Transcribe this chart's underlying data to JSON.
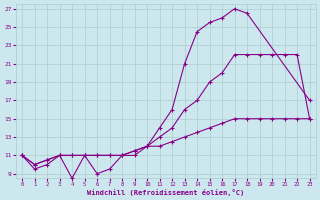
{
  "title": "",
  "xlabel": "Windchill (Refroidissement éolien,°C)",
  "ylabel": "",
  "bg_color": "#cce8ee",
  "line_color": "#880088",
  "grid_color": "#aacccc",
  "xlim": [
    -0.5,
    23.5
  ],
  "ylim": [
    8.5,
    27.5
  ],
  "xticks": [
    0,
    1,
    2,
    3,
    4,
    5,
    6,
    7,
    8,
    9,
    10,
    11,
    12,
    13,
    14,
    15,
    16,
    17,
    18,
    19,
    20,
    21,
    22,
    23
  ],
  "yticks": [
    9,
    11,
    13,
    15,
    17,
    19,
    21,
    23,
    25,
    27
  ],
  "line1_x": [
    0,
    1,
    2,
    3,
    4,
    5,
    6,
    7,
    8,
    9,
    10,
    11,
    12,
    13,
    14,
    15,
    16,
    17,
    18,
    23
  ],
  "line1_y": [
    11,
    9.5,
    10,
    11,
    8.5,
    11,
    9,
    9.5,
    11,
    11,
    12,
    14,
    16,
    21,
    24.5,
    25.5,
    26,
    27,
    26.5,
    17
  ],
  "line2_x": [
    0,
    1,
    2,
    3,
    4,
    5,
    6,
    7,
    8,
    9,
    10,
    11,
    12,
    13,
    14,
    15,
    16,
    17,
    18,
    19,
    20,
    21,
    22,
    23
  ],
  "line2_y": [
    11,
    10,
    10.5,
    11,
    11,
    11,
    11,
    11,
    11,
    11.5,
    12,
    13,
    14,
    16,
    17,
    19,
    20,
    22,
    22,
    22,
    22,
    22,
    22,
    15
  ],
  "line3_x": [
    0,
    1,
    2,
    3,
    4,
    5,
    6,
    7,
    8,
    9,
    10,
    11,
    12,
    13,
    14,
    15,
    16,
    17,
    18,
    19,
    20,
    21,
    22,
    23
  ],
  "line3_y": [
    11,
    10,
    10.5,
    11,
    11,
    11,
    11,
    11,
    11,
    11.5,
    12,
    12,
    12.5,
    13,
    13.5,
    14,
    14.5,
    15,
    15,
    15,
    15,
    15,
    15,
    15
  ]
}
